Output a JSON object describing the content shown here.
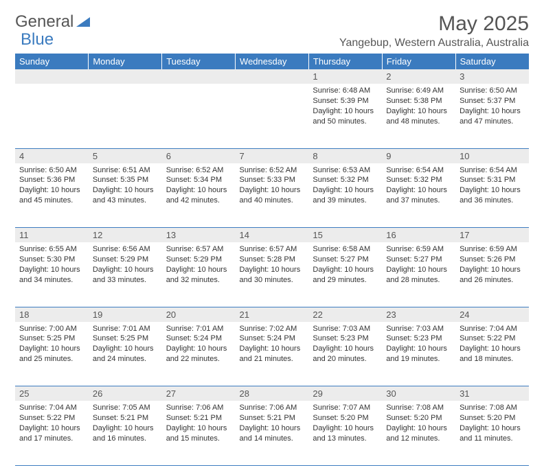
{
  "logo": {
    "text1": "General",
    "text2": "Blue"
  },
  "title": "May 2025",
  "location": "Yangebup, Western Australia, Australia",
  "colors": {
    "header_bg": "#3b7bbf",
    "header_text": "#ffffff",
    "daynum_bg": "#ececec",
    "border": "#3b7bbf",
    "text": "#333333"
  },
  "day_headers": [
    "Sunday",
    "Monday",
    "Tuesday",
    "Wednesday",
    "Thursday",
    "Friday",
    "Saturday"
  ],
  "weeks": [
    [
      null,
      null,
      null,
      null,
      {
        "n": "1",
        "sr": "6:48 AM",
        "ss": "5:39 PM",
        "dl": "10 hours and 50 minutes."
      },
      {
        "n": "2",
        "sr": "6:49 AM",
        "ss": "5:38 PM",
        "dl": "10 hours and 48 minutes."
      },
      {
        "n": "3",
        "sr": "6:50 AM",
        "ss": "5:37 PM",
        "dl": "10 hours and 47 minutes."
      }
    ],
    [
      {
        "n": "4",
        "sr": "6:50 AM",
        "ss": "5:36 PM",
        "dl": "10 hours and 45 minutes."
      },
      {
        "n": "5",
        "sr": "6:51 AM",
        "ss": "5:35 PM",
        "dl": "10 hours and 43 minutes."
      },
      {
        "n": "6",
        "sr": "6:52 AM",
        "ss": "5:34 PM",
        "dl": "10 hours and 42 minutes."
      },
      {
        "n": "7",
        "sr": "6:52 AM",
        "ss": "5:33 PM",
        "dl": "10 hours and 40 minutes."
      },
      {
        "n": "8",
        "sr": "6:53 AM",
        "ss": "5:32 PM",
        "dl": "10 hours and 39 minutes."
      },
      {
        "n": "9",
        "sr": "6:54 AM",
        "ss": "5:32 PM",
        "dl": "10 hours and 37 minutes."
      },
      {
        "n": "10",
        "sr": "6:54 AM",
        "ss": "5:31 PM",
        "dl": "10 hours and 36 minutes."
      }
    ],
    [
      {
        "n": "11",
        "sr": "6:55 AM",
        "ss": "5:30 PM",
        "dl": "10 hours and 34 minutes."
      },
      {
        "n": "12",
        "sr": "6:56 AM",
        "ss": "5:29 PM",
        "dl": "10 hours and 33 minutes."
      },
      {
        "n": "13",
        "sr": "6:57 AM",
        "ss": "5:29 PM",
        "dl": "10 hours and 32 minutes."
      },
      {
        "n": "14",
        "sr": "6:57 AM",
        "ss": "5:28 PM",
        "dl": "10 hours and 30 minutes."
      },
      {
        "n": "15",
        "sr": "6:58 AM",
        "ss": "5:27 PM",
        "dl": "10 hours and 29 minutes."
      },
      {
        "n": "16",
        "sr": "6:59 AM",
        "ss": "5:27 PM",
        "dl": "10 hours and 28 minutes."
      },
      {
        "n": "17",
        "sr": "6:59 AM",
        "ss": "5:26 PM",
        "dl": "10 hours and 26 minutes."
      }
    ],
    [
      {
        "n": "18",
        "sr": "7:00 AM",
        "ss": "5:25 PM",
        "dl": "10 hours and 25 minutes."
      },
      {
        "n": "19",
        "sr": "7:01 AM",
        "ss": "5:25 PM",
        "dl": "10 hours and 24 minutes."
      },
      {
        "n": "20",
        "sr": "7:01 AM",
        "ss": "5:24 PM",
        "dl": "10 hours and 22 minutes."
      },
      {
        "n": "21",
        "sr": "7:02 AM",
        "ss": "5:24 PM",
        "dl": "10 hours and 21 minutes."
      },
      {
        "n": "22",
        "sr": "7:03 AM",
        "ss": "5:23 PM",
        "dl": "10 hours and 20 minutes."
      },
      {
        "n": "23",
        "sr": "7:03 AM",
        "ss": "5:23 PM",
        "dl": "10 hours and 19 minutes."
      },
      {
        "n": "24",
        "sr": "7:04 AM",
        "ss": "5:22 PM",
        "dl": "10 hours and 18 minutes."
      }
    ],
    [
      {
        "n": "25",
        "sr": "7:04 AM",
        "ss": "5:22 PM",
        "dl": "10 hours and 17 minutes."
      },
      {
        "n": "26",
        "sr": "7:05 AM",
        "ss": "5:21 PM",
        "dl": "10 hours and 16 minutes."
      },
      {
        "n": "27",
        "sr": "7:06 AM",
        "ss": "5:21 PM",
        "dl": "10 hours and 15 minutes."
      },
      {
        "n": "28",
        "sr": "7:06 AM",
        "ss": "5:21 PM",
        "dl": "10 hours and 14 minutes."
      },
      {
        "n": "29",
        "sr": "7:07 AM",
        "ss": "5:20 PM",
        "dl": "10 hours and 13 minutes."
      },
      {
        "n": "30",
        "sr": "7:08 AM",
        "ss": "5:20 PM",
        "dl": "10 hours and 12 minutes."
      },
      {
        "n": "31",
        "sr": "7:08 AM",
        "ss": "5:20 PM",
        "dl": "10 hours and 11 minutes."
      }
    ]
  ],
  "labels": {
    "sunrise": "Sunrise:",
    "sunset": "Sunset:",
    "daylight": "Daylight:"
  }
}
